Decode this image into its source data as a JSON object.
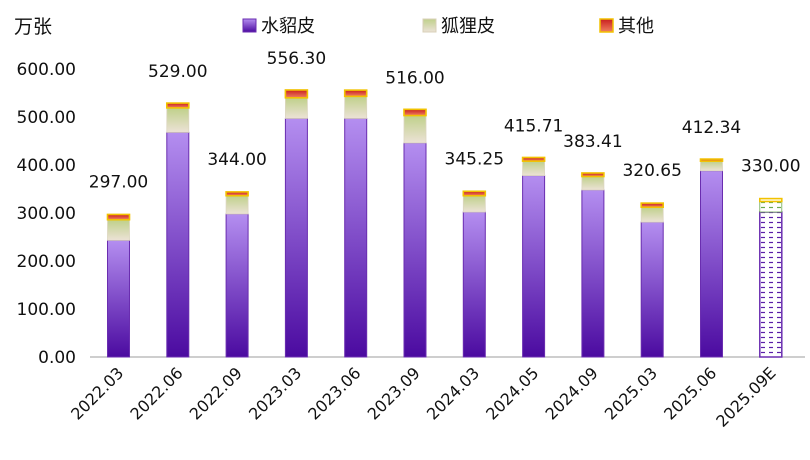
{
  "chart_data": {
    "type": "bar",
    "stacked": true,
    "unit_label": "万张",
    "categories": [
      "2022.03",
      "2022.06",
      "2022.09",
      "2023.03",
      "2023.06",
      "2023.09",
      "2024.03",
      "2024.05",
      "2024.09",
      "2025.03",
      "2025.06",
      "2025.09E"
    ],
    "series": [
      {
        "name": "水貂皮",
        "values": [
          243,
          468,
          298,
          497,
          497,
          446,
          302,
          378,
          348,
          281,
          388,
          302
        ]
      },
      {
        "name": "狐狸皮",
        "values": [
          43,
          51,
          38,
          43,
          46,
          57,
          34,
          30,
          28,
          31,
          20,
          22
        ]
      },
      {
        "name": "其他",
        "values": [
          11,
          10,
          8,
          16.3,
          13,
          13,
          9.25,
          7.71,
          7.41,
          8.65,
          4.34,
          6
        ]
      }
    ],
    "totals": [
      "297.00",
      "529.00",
      "344.00",
      "556.30",
      "",
      "516.00",
      "345.25",
      "415.71",
      "383.41",
      "320.65",
      "412.34",
      "330.00"
    ],
    "estimated_index": 11,
    "ylim": [
      0,
      600
    ],
    "yticks": [
      "0.00",
      "100.00",
      "200.00",
      "300.00",
      "400.00",
      "500.00",
      "600.00"
    ],
    "grid": false,
    "legend_position": "top",
    "colors": {
      "mink_top": "#b48ef0",
      "mink_bottom": "#4b0aa0",
      "mink_border": "#6a2db0",
      "fox_top": "#bfd08a",
      "fox_bottom": "#e6ddd0",
      "other_top": "#c81e1e",
      "other_bottom": "#f08060",
      "other_border": "#f2c200",
      "axis": "#9e9e9e"
    }
  }
}
